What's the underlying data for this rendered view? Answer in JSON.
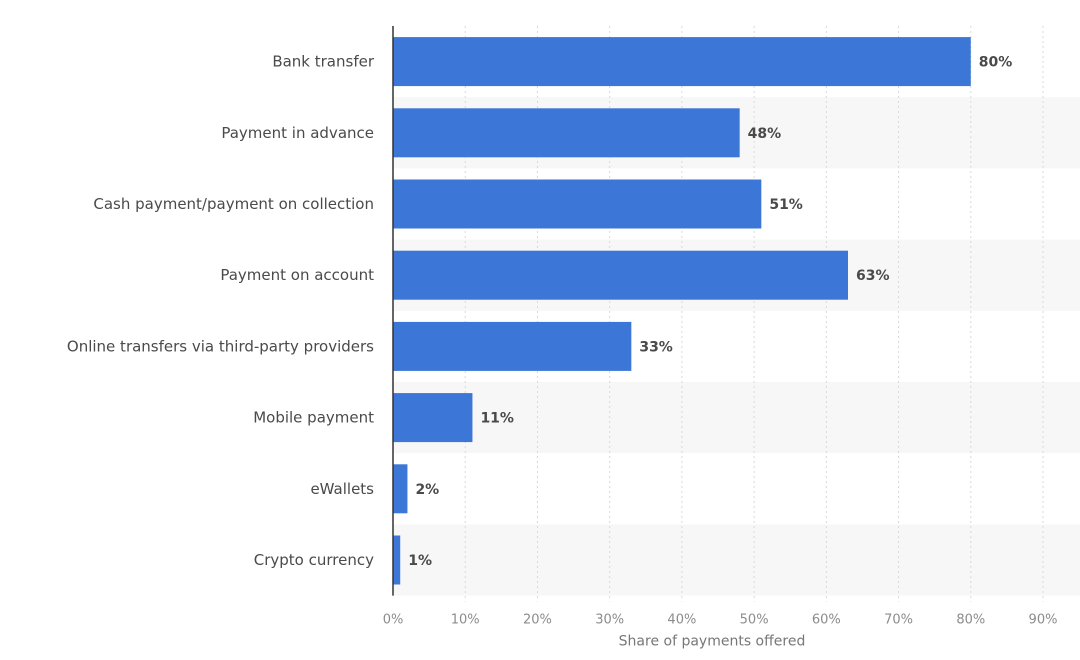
{
  "chart_data": {
    "type": "bar",
    "orientation": "horizontal",
    "categories": [
      "Bank transfer",
      "Payment in advance",
      "Cash payment/payment on collection",
      "Payment on account",
      "Online transfers via third-party providers",
      "Mobile payment",
      "eWallets",
      "Crypto currency"
    ],
    "values": [
      80,
      48,
      51,
      63,
      33,
      11,
      2,
      1
    ],
    "value_labels": [
      "80%",
      "48%",
      "51%",
      "63%",
      "33%",
      "11%",
      "2%",
      "1%"
    ],
    "xlabel": "Share of payments offered",
    "ylabel": "",
    "xlim": [
      0,
      90
    ],
    "xticks": [
      0,
      10,
      20,
      30,
      40,
      50,
      60,
      70,
      80,
      90
    ],
    "xtick_labels": [
      "0%",
      "10%",
      "20%",
      "30%",
      "40%",
      "50%",
      "60%",
      "70%",
      "80%",
      "90%"
    ],
    "grid": "vertical dashed",
    "bar_color": "#3c76d6",
    "band_color": "#f7f7f7",
    "legend": "none"
  }
}
